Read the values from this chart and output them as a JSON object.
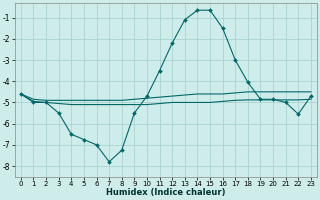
{
  "xlabel": "Humidex (Indice chaleur)",
  "xlim": [
    -0.5,
    23.5
  ],
  "ylim": [
    -8.5,
    -0.3
  ],
  "yticks": [
    -8,
    -7,
    -6,
    -5,
    -4,
    -3,
    -2,
    -1
  ],
  "xticks": [
    0,
    1,
    2,
    3,
    4,
    5,
    6,
    7,
    8,
    9,
    10,
    11,
    12,
    13,
    14,
    15,
    16,
    17,
    18,
    19,
    20,
    21,
    22,
    23
  ],
  "background_color": "#ceecea",
  "grid_color": "#aad4d0",
  "line_color": "#006868",
  "line1_x": [
    0,
    1,
    2,
    3,
    4,
    5,
    6,
    7,
    8,
    9,
    10,
    11,
    12,
    13,
    14,
    15,
    16,
    17,
    18,
    19,
    20,
    21,
    22,
    23
  ],
  "line1_y": [
    -4.6,
    -5.0,
    -5.0,
    -5.5,
    -6.5,
    -6.75,
    -7.0,
    -7.8,
    -7.25,
    -5.5,
    -4.7,
    -3.5,
    -2.2,
    -1.1,
    -0.65,
    -0.65,
    -1.5,
    -3.0,
    -4.05,
    -4.85,
    -4.85,
    -5.0,
    -5.55,
    -4.7
  ],
  "line2_x": [
    0,
    1,
    2,
    3,
    4,
    5,
    6,
    7,
    8,
    9,
    10,
    11,
    12,
    13,
    14,
    15,
    16,
    17,
    18,
    19,
    20,
    21,
    22,
    23
  ],
  "line2_y": [
    -4.6,
    -4.85,
    -4.9,
    -4.9,
    -4.9,
    -4.9,
    -4.9,
    -4.9,
    -4.9,
    -4.85,
    -4.8,
    -4.75,
    -4.7,
    -4.65,
    -4.6,
    -4.6,
    -4.6,
    -4.55,
    -4.5,
    -4.5,
    -4.5,
    -4.5,
    -4.5,
    -4.5
  ],
  "line3_x": [
    0,
    1,
    2,
    3,
    4,
    5,
    6,
    7,
    8,
    9,
    10,
    11,
    12,
    13,
    14,
    15,
    16,
    17,
    18,
    19,
    20,
    21,
    22,
    23
  ],
  "line3_y": [
    -4.6,
    -4.95,
    -5.0,
    -5.05,
    -5.1,
    -5.1,
    -5.1,
    -5.1,
    -5.1,
    -5.1,
    -5.1,
    -5.05,
    -5.0,
    -5.0,
    -5.0,
    -5.0,
    -4.95,
    -4.9,
    -4.88,
    -4.88,
    -4.88,
    -4.88,
    -4.88,
    -4.85
  ]
}
